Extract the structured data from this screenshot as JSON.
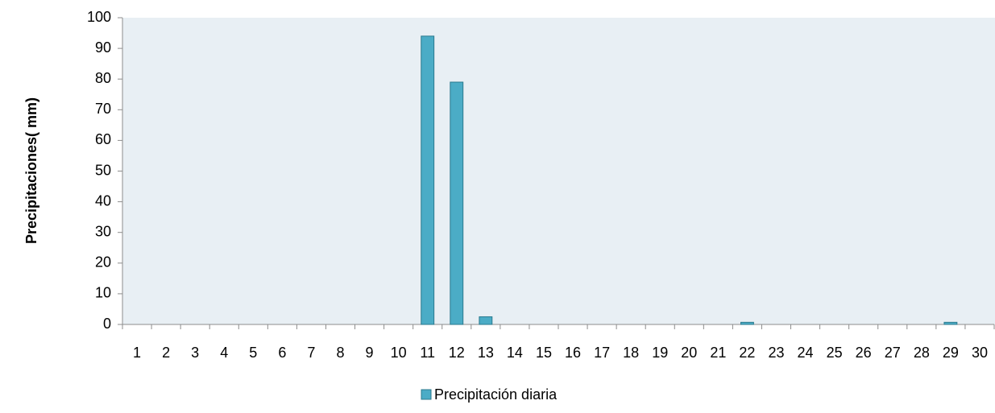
{
  "chart_data": {
    "type": "bar",
    "y_label": "Precipitaciones( mm)",
    "categories": [
      "1",
      "2",
      "3",
      "4",
      "5",
      "6",
      "7",
      "8",
      "9",
      "10",
      "11",
      "12",
      "13",
      "14",
      "15",
      "16",
      "17",
      "18",
      "19",
      "20",
      "21",
      "22",
      "23",
      "24",
      "25",
      "26",
      "27",
      "28",
      "29",
      "30"
    ],
    "series": [
      {
        "name": "Precipitación diaria",
        "color": "#4bacc6",
        "values": [
          0,
          0,
          0,
          0,
          0,
          0,
          0,
          0,
          0,
          0,
          94,
          79,
          2.5,
          0,
          0,
          0,
          0,
          0,
          0,
          0,
          0,
          0.7,
          0,
          0,
          0,
          0,
          0,
          0,
          0.7,
          0
        ]
      }
    ],
    "ylim": [
      0,
      100
    ],
    "yticks": [
      0,
      10,
      20,
      30,
      40,
      50,
      60,
      70,
      80,
      90,
      100
    ],
    "plot_background": "#e8eff4",
    "legend": "bottom"
  }
}
